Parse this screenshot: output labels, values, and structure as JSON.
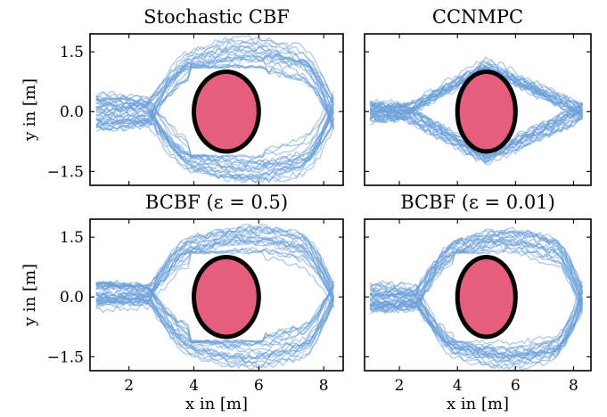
{
  "chart_data": [
    {
      "type": "line",
      "title": "Stochastic CBF",
      "xlabel": "",
      "ylabel": "y in [m]",
      "xlim": [
        0.8,
        8.6
      ],
      "ylim": [
        -1.85,
        1.95
      ],
      "yticks": [
        -1.5,
        0.0,
        1.5
      ],
      "ytick_labels": [
        "−1.5",
        "0.0",
        "1.5"
      ],
      "xticks": [
        2,
        4,
        6,
        8
      ],
      "xtick_labels": [],
      "trajectory_count": 40,
      "spread": 1.0,
      "funnel": "round",
      "obstacle": {
        "center": [
          5.0,
          0.0
        ],
        "radius_x": 1.0,
        "radius_y": 1.0
      },
      "trajectory_color": "#6a9fd8",
      "obstacle_color": "#e55e7e",
      "grid": false
    },
    {
      "type": "line",
      "title": "CCNMPC",
      "xlabel": "",
      "ylabel": "",
      "xlim": [
        0.8,
        8.6
      ],
      "ylim": [
        -1.85,
        1.95
      ],
      "yticks": [
        -1.5,
        0.0,
        1.5
      ],
      "ytick_labels": [],
      "xticks": [
        2,
        4,
        6,
        8
      ],
      "xtick_labels": [],
      "trajectory_count": 40,
      "spread": 0.55,
      "funnel": "diamond",
      "obstacle": {
        "center": [
          5.0,
          0.0
        ],
        "radius_x": 1.0,
        "radius_y": 1.0
      },
      "trajectory_color": "#6a9fd8",
      "obstacle_color": "#e55e7e",
      "grid": false
    },
    {
      "type": "line",
      "title": "BCBF (ε = 0.5)",
      "xlabel": "x in [m]",
      "ylabel": "y in [m]",
      "xlim": [
        0.8,
        8.6
      ],
      "ylim": [
        -1.85,
        1.95
      ],
      "yticks": [
        -1.5,
        0.0,
        1.5
      ],
      "ytick_labels": [
        "−1.5",
        "0.0",
        "1.5"
      ],
      "xticks": [
        2,
        4,
        6,
        8
      ],
      "xtick_labels": [
        "2",
        "4",
        "6",
        "8"
      ],
      "trajectory_count": 40,
      "spread": 0.8,
      "funnel": "round",
      "obstacle": {
        "center": [
          5.0,
          0.0
        ],
        "radius_x": 1.0,
        "radius_y": 1.0
      },
      "trajectory_color": "#6a9fd8",
      "obstacle_color": "#e55e7e",
      "grid": false
    },
    {
      "type": "line",
      "title": "BCBF (ε = 0.01)",
      "xlabel": "x in [m]",
      "ylabel": "",
      "xlim": [
        0.8,
        8.6
      ],
      "ylim": [
        -1.85,
        1.95
      ],
      "yticks": [
        -1.5,
        0.0,
        1.5
      ],
      "ytick_labels": [],
      "xticks": [
        2,
        4,
        6,
        8
      ],
      "xtick_labels": [
        "2",
        "4",
        "6",
        "8"
      ],
      "trajectory_count": 40,
      "spread": 0.8,
      "funnel": "round",
      "obstacle": {
        "center": [
          5.0,
          0.0
        ],
        "radius_x": 1.0,
        "radius_y": 1.0
      },
      "trajectory_color": "#6a9fd8",
      "obstacle_color": "#e55e7e",
      "grid": false
    }
  ]
}
